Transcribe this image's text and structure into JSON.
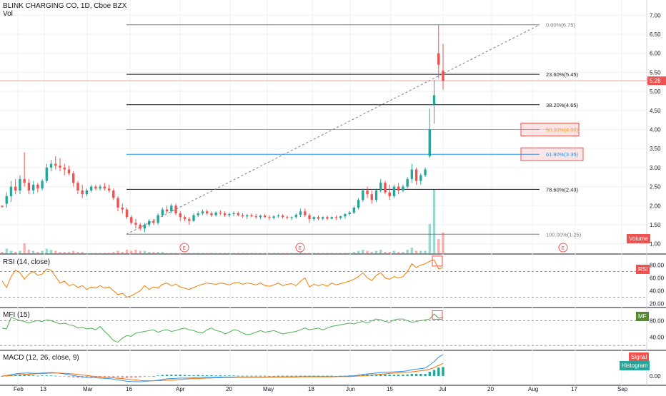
{
  "header": {
    "symbol_title": "BLINK CHARGING CO, 1D, Cboe BZX",
    "vol_label": "Vol"
  },
  "colors": {
    "up": "#26a69a",
    "down": "#ef5350",
    "grid": "#eef0f3",
    "axis_text": "#131722",
    "rsi": "#f57c00",
    "mfi": "#4caf50",
    "macd": "#2196f3",
    "signal": "#ff6d00",
    "fib_gray": "#787b86",
    "fib_orange": "#ff9800",
    "fib_blue": "#2196f3"
  },
  "price_axis": {
    "ticks": [
      "7.00",
      "6.50",
      "6.00",
      "5.50",
      "5.00",
      "4.50",
      "4.00",
      "3.50",
      "3.00",
      "2.50",
      "2.00",
      "1.50",
      "1.00"
    ],
    "last_price": "5.28",
    "volume_label": "Volume"
  },
  "fib_levels": [
    {
      "label": "0.00%(6.75)",
      "price": 6.75,
      "color": "#787b86",
      "boxed": false
    },
    {
      "label": "23.60%(5.45)",
      "price": 5.45,
      "color": "#131722",
      "boxed": false
    },
    {
      "label": "38.20%(4.65)",
      "price": 4.65,
      "color": "#131722",
      "boxed": false
    },
    {
      "label": "50.00%(4.00)",
      "price": 4.0,
      "color": "#ff9800",
      "boxed": true
    },
    {
      "label": "61.80%(3.35)",
      "price": 3.35,
      "color": "#2196f3",
      "boxed": true
    },
    {
      "label": "78.60%(2.43)",
      "price": 2.43,
      "color": "#131722",
      "boxed": false
    },
    {
      "label": "100.00%(1.25)",
      "price": 1.25,
      "color": "#787b86",
      "boxed": false
    }
  ],
  "earnings_markers": [
    "E",
    "E",
    "E"
  ],
  "rsi": {
    "label": "RSI (14, close)",
    "badge": "RSI",
    "ticks": [
      "80.00",
      "60.00",
      "40.00",
      "20.00"
    ]
  },
  "mfi": {
    "label": "MFI (15)",
    "badge": "MF",
    "ticks": [
      "80.00",
      "40.00"
    ]
  },
  "macd": {
    "label": "MACD (12, 26, close, 9)",
    "ticks": [
      "0.00"
    ],
    "signal_badge": "Signal",
    "hist_badge": "Histogram"
  },
  "time_axis": {
    "labels": [
      "Feb",
      "13",
      "Mar",
      "16",
      "Apr",
      "20",
      "May",
      "18",
      "Jun",
      "15",
      "Jul",
      "20",
      "Aug",
      "17",
      "Sep"
    ]
  },
  "chart_data": {
    "type": "candlestick",
    "ylim": [
      0.75,
      7.25
    ],
    "notes": "approximate daily OHLC read from chart",
    "candles": [
      [
        2.0,
        2.0,
        1.95,
        1.97
      ],
      [
        2.05,
        2.35,
        1.95,
        2.25
      ],
      [
        2.25,
        2.65,
        2.1,
        2.5
      ],
      [
        2.5,
        2.7,
        2.3,
        2.4
      ],
      [
        2.4,
        2.8,
        2.3,
        2.7
      ],
      [
        2.7,
        3.4,
        2.5,
        2.6
      ],
      [
        2.6,
        2.7,
        2.3,
        2.4
      ],
      [
        2.4,
        2.65,
        2.3,
        2.55
      ],
      [
        2.55,
        2.6,
        2.35,
        2.45
      ],
      [
        2.45,
        2.7,
        2.4,
        2.65
      ],
      [
        2.65,
        3.1,
        2.6,
        3.0
      ],
      [
        3.0,
        3.2,
        2.9,
        3.1
      ],
      [
        3.1,
        3.3,
        2.95,
        3.05
      ],
      [
        3.05,
        3.25,
        2.9,
        3.0
      ],
      [
        3.0,
        3.1,
        2.8,
        2.95
      ],
      [
        2.95,
        3.05,
        2.8,
        2.85
      ],
      [
        2.85,
        2.9,
        2.5,
        2.6
      ],
      [
        2.6,
        2.65,
        2.3,
        2.4
      ],
      [
        2.4,
        2.55,
        2.2,
        2.3
      ],
      [
        2.3,
        2.45,
        2.25,
        2.4
      ],
      [
        2.4,
        2.55,
        2.35,
        2.5
      ],
      [
        2.5,
        2.55,
        2.4,
        2.45
      ],
      [
        2.45,
        2.55,
        2.4,
        2.5
      ],
      [
        2.5,
        2.6,
        2.4,
        2.45
      ],
      [
        2.45,
        2.55,
        2.35,
        2.4
      ],
      [
        2.4,
        2.45,
        2.15,
        2.2
      ],
      [
        2.2,
        2.25,
        1.85,
        1.95
      ],
      [
        1.95,
        2.05,
        1.8,
        1.9
      ],
      [
        1.9,
        1.95,
        1.65,
        1.7
      ],
      [
        1.7,
        1.75,
        1.5,
        1.55
      ],
      [
        1.55,
        1.65,
        1.4,
        1.5
      ],
      [
        1.5,
        1.55,
        1.35,
        1.4
      ],
      [
        1.4,
        1.55,
        1.3,
        1.5
      ],
      [
        1.5,
        1.65,
        1.45,
        1.6
      ],
      [
        1.6,
        1.65,
        1.5,
        1.55
      ],
      [
        1.55,
        1.8,
        1.5,
        1.75
      ],
      [
        1.75,
        1.95,
        1.7,
        1.9
      ],
      [
        1.9,
        2.0,
        1.8,
        1.85
      ],
      [
        1.85,
        2.05,
        1.8,
        2.0
      ],
      [
        2.0,
        2.05,
        1.75,
        1.8
      ],
      [
        1.8,
        1.85,
        1.6,
        1.7
      ],
      [
        1.7,
        1.75,
        1.6,
        1.65
      ],
      [
        1.65,
        1.7,
        1.5,
        1.6
      ],
      [
        1.6,
        1.8,
        1.58,
        1.75
      ],
      [
        1.75,
        1.85,
        1.7,
        1.8
      ],
      [
        1.8,
        1.9,
        1.75,
        1.85
      ],
      [
        1.85,
        1.9,
        1.75,
        1.8
      ],
      [
        1.8,
        1.85,
        1.7,
        1.75
      ],
      [
        1.75,
        1.85,
        1.72,
        1.82
      ],
      [
        1.82,
        1.88,
        1.75,
        1.8
      ],
      [
        1.8,
        1.85,
        1.7,
        1.75
      ],
      [
        1.75,
        1.82,
        1.7,
        1.78
      ],
      [
        1.78,
        1.85,
        1.72,
        1.8
      ],
      [
        1.8,
        1.85,
        1.72,
        1.75
      ],
      [
        1.75,
        1.8,
        1.68,
        1.72
      ],
      [
        1.72,
        1.78,
        1.65,
        1.75
      ],
      [
        1.75,
        1.8,
        1.7,
        1.72
      ],
      [
        1.72,
        1.78,
        1.66,
        1.7
      ],
      [
        1.7,
        1.76,
        1.65,
        1.74
      ],
      [
        1.74,
        1.78,
        1.68,
        1.7
      ],
      [
        1.7,
        1.75,
        1.62,
        1.68
      ],
      [
        1.68,
        1.75,
        1.64,
        1.72
      ],
      [
        1.72,
        1.78,
        1.68,
        1.74
      ],
      [
        1.74,
        1.78,
        1.66,
        1.7
      ],
      [
        1.7,
        1.74,
        1.64,
        1.68
      ],
      [
        1.68,
        1.72,
        1.62,
        1.7
      ],
      [
        1.7,
        1.8,
        1.66,
        1.76
      ],
      [
        1.76,
        1.92,
        1.7,
        1.85
      ],
      [
        1.85,
        1.92,
        1.7,
        1.75
      ],
      [
        1.75,
        1.8,
        1.55,
        1.65
      ],
      [
        1.65,
        1.72,
        1.6,
        1.7
      ],
      [
        1.7,
        1.74,
        1.62,
        1.66
      ],
      [
        1.66,
        1.72,
        1.62,
        1.7
      ],
      [
        1.7,
        1.74,
        1.62,
        1.66
      ],
      [
        1.66,
        1.72,
        1.64,
        1.7
      ],
      [
        1.7,
        1.74,
        1.62,
        1.68
      ],
      [
        1.68,
        1.74,
        1.64,
        1.72
      ],
      [
        1.72,
        1.8,
        1.66,
        1.78
      ],
      [
        1.78,
        1.86,
        1.74,
        1.82
      ],
      [
        1.82,
        2.0,
        1.78,
        1.95
      ],
      [
        1.95,
        2.2,
        1.9,
        2.15
      ],
      [
        2.15,
        2.45,
        2.1,
        2.4
      ],
      [
        2.4,
        2.5,
        2.2,
        2.3
      ],
      [
        2.3,
        2.4,
        2.05,
        2.15
      ],
      [
        2.15,
        2.45,
        2.1,
        2.4
      ],
      [
        2.4,
        2.7,
        2.35,
        2.6
      ],
      [
        2.6,
        2.65,
        2.3,
        2.35
      ],
      [
        2.35,
        2.55,
        2.15,
        2.25
      ],
      [
        2.25,
        2.55,
        2.2,
        2.5
      ],
      [
        2.5,
        2.6,
        2.3,
        2.4
      ],
      [
        2.4,
        2.55,
        2.35,
        2.5
      ],
      [
        2.5,
        2.75,
        2.45,
        2.7
      ],
      [
        2.7,
        3.1,
        2.6,
        2.95
      ],
      [
        2.95,
        3.0,
        2.55,
        2.65
      ],
      [
        2.65,
        2.85,
        2.55,
        2.8
      ],
      [
        2.8,
        3.0,
        2.75,
        2.95
      ],
      [
        3.3,
        4.55,
        3.25,
        4.0
      ],
      [
        4.65,
        5.3,
        4.15,
        4.9
      ],
      [
        6.0,
        6.75,
        5.35,
        5.7
      ],
      [
        5.55,
        6.25,
        5.05,
        5.28
      ]
    ],
    "volume": [
      0.2,
      0.5,
      0.3,
      0.2,
      0.3,
      1.0,
      0.4,
      0.3,
      0.2,
      0.3,
      0.5,
      0.4,
      0.3,
      0.2,
      0.2,
      0.2,
      0.3,
      0.2,
      0.2,
      0.1,
      0.1,
      0.1,
      0.1,
      0.1,
      0.1,
      0.2,
      0.3,
      0.2,
      0.4,
      0.3,
      0.4,
      0.3,
      0.3,
      0.2,
      0.2,
      0.2,
      0.2,
      0.1,
      0.1,
      0.1,
      0.1,
      0.1,
      0.1,
      0.1,
      0.1,
      0.1,
      0.1,
      0.1,
      0.1,
      0.1,
      0.1,
      0.1,
      0.1,
      0.1,
      0.1,
      0.1,
      0.1,
      0.1,
      0.1,
      0.1,
      0.1,
      0.1,
      0.1,
      0.1,
      0.1,
      0.1,
      0.1,
      0.2,
      0.1,
      0.1,
      0.1,
      0.1,
      0.1,
      0.1,
      0.1,
      0.1,
      0.1,
      0.1,
      0.1,
      0.2,
      0.3,
      0.4,
      0.3,
      0.2,
      0.3,
      0.4,
      0.2,
      0.2,
      0.3,
      0.2,
      0.2,
      0.4,
      0.6,
      0.3,
      0.3,
      0.3,
      2.8,
      6.0,
      1.4,
      2.0
    ],
    "rsi": [
      55,
      45,
      62,
      72,
      68,
      58,
      66,
      70,
      64,
      66,
      74,
      72,
      62,
      52,
      55,
      48,
      50,
      45,
      48,
      42,
      46,
      44,
      48,
      44,
      46,
      40,
      34,
      36,
      30,
      32,
      36,
      40,
      48,
      42,
      46,
      44,
      50,
      52,
      48,
      50,
      46,
      44,
      42,
      45,
      48,
      50,
      52,
      51,
      50,
      52,
      51,
      49,
      52,
      53,
      50,
      52,
      51,
      49,
      52,
      48,
      47,
      49,
      52,
      48,
      50,
      51,
      48,
      55,
      60,
      46,
      50,
      48,
      50,
      47,
      52,
      49,
      51,
      53,
      55,
      58,
      62,
      68,
      60,
      56,
      64,
      68,
      60,
      58,
      62,
      60,
      62,
      70,
      82,
      76,
      80,
      82,
      86,
      88,
      74,
      76
    ],
    "mfi": [
      62,
      60,
      88,
      84,
      80,
      78,
      74,
      78,
      80,
      78,
      82,
      80,
      76,
      72,
      74,
      70,
      68,
      62,
      64,
      60,
      62,
      58,
      66,
      54,
      44,
      32,
      28,
      38,
      44,
      42,
      50,
      52,
      54,
      56,
      58,
      52,
      56,
      58,
      54,
      56,
      60,
      62,
      58,
      56,
      52,
      50,
      58,
      62,
      56,
      54,
      48,
      52,
      58,
      56,
      50,
      46,
      48,
      52,
      56,
      52,
      54,
      56,
      52,
      48,
      50,
      52,
      54,
      58,
      62,
      58,
      60,
      62,
      58,
      62,
      66,
      68,
      70,
      72,
      74,
      72,
      76,
      78,
      74,
      80,
      84,
      82,
      78,
      76,
      82,
      84,
      84,
      80,
      76,
      78,
      80,
      82,
      84,
      96,
      86,
      88
    ],
    "macd": [
      0.0,
      0.02,
      0.05,
      0.08,
      0.1,
      0.11,
      0.11,
      0.1,
      0.1,
      0.11,
      0.12,
      0.13,
      0.12,
      0.1,
      0.08,
      0.05,
      0.02,
      -0.01,
      -0.03,
      -0.05,
      -0.06,
      -0.07,
      -0.08,
      -0.09,
      -0.1,
      -0.12,
      -0.15,
      -0.17,
      -0.2,
      -0.21,
      -0.22,
      -0.22,
      -0.21,
      -0.19,
      -0.18,
      -0.16,
      -0.13,
      -0.11,
      -0.1,
      -0.09,
      -0.08,
      -0.08,
      -0.08,
      -0.07,
      -0.06,
      -0.06,
      -0.05,
      -0.05,
      -0.05,
      -0.04,
      -0.04,
      -0.04,
      -0.04,
      -0.04,
      -0.04,
      -0.04,
      -0.04,
      -0.04,
      -0.04,
      -0.04,
      -0.04,
      -0.04,
      -0.03,
      -0.03,
      -0.03,
      -0.03,
      -0.03,
      -0.02,
      -0.02,
      -0.02,
      -0.02,
      -0.02,
      -0.02,
      -0.02,
      -0.02,
      -0.02,
      -0.01,
      -0.01,
      0.0,
      0.01,
      0.03,
      0.06,
      0.08,
      0.09,
      0.11,
      0.13,
      0.14,
      0.15,
      0.16,
      0.17,
      0.18,
      0.2,
      0.24,
      0.26,
      0.28,
      0.3,
      0.42,
      0.55,
      0.72,
      0.82
    ],
    "signal": [
      0.0,
      0.01,
      0.02,
      0.03,
      0.05,
      0.06,
      0.07,
      0.08,
      0.09,
      0.09,
      0.1,
      0.11,
      0.11,
      0.11,
      0.1,
      0.09,
      0.08,
      0.06,
      0.04,
      0.02,
      0.0,
      -0.02,
      -0.03,
      -0.05,
      -0.06,
      -0.07,
      -0.09,
      -0.1,
      -0.12,
      -0.14,
      -0.15,
      -0.17,
      -0.18,
      -0.18,
      -0.18,
      -0.18,
      -0.17,
      -0.16,
      -0.15,
      -0.14,
      -0.13,
      -0.12,
      -0.11,
      -0.1,
      -0.1,
      -0.09,
      -0.08,
      -0.08,
      -0.07,
      -0.07,
      -0.06,
      -0.06,
      -0.06,
      -0.05,
      -0.05,
      -0.05,
      -0.05,
      -0.05,
      -0.05,
      -0.05,
      -0.04,
      -0.04,
      -0.04,
      -0.04,
      -0.04,
      -0.04,
      -0.04,
      -0.03,
      -0.03,
      -0.03,
      -0.03,
      -0.03,
      -0.03,
      -0.03,
      -0.03,
      -0.02,
      -0.02,
      -0.02,
      -0.02,
      -0.01,
      0.0,
      0.01,
      0.02,
      0.04,
      0.05,
      0.07,
      0.08,
      0.1,
      0.11,
      0.12,
      0.13,
      0.14,
      0.16,
      0.18,
      0.2,
      0.22,
      0.26,
      0.32,
      0.4,
      0.48
    ]
  }
}
